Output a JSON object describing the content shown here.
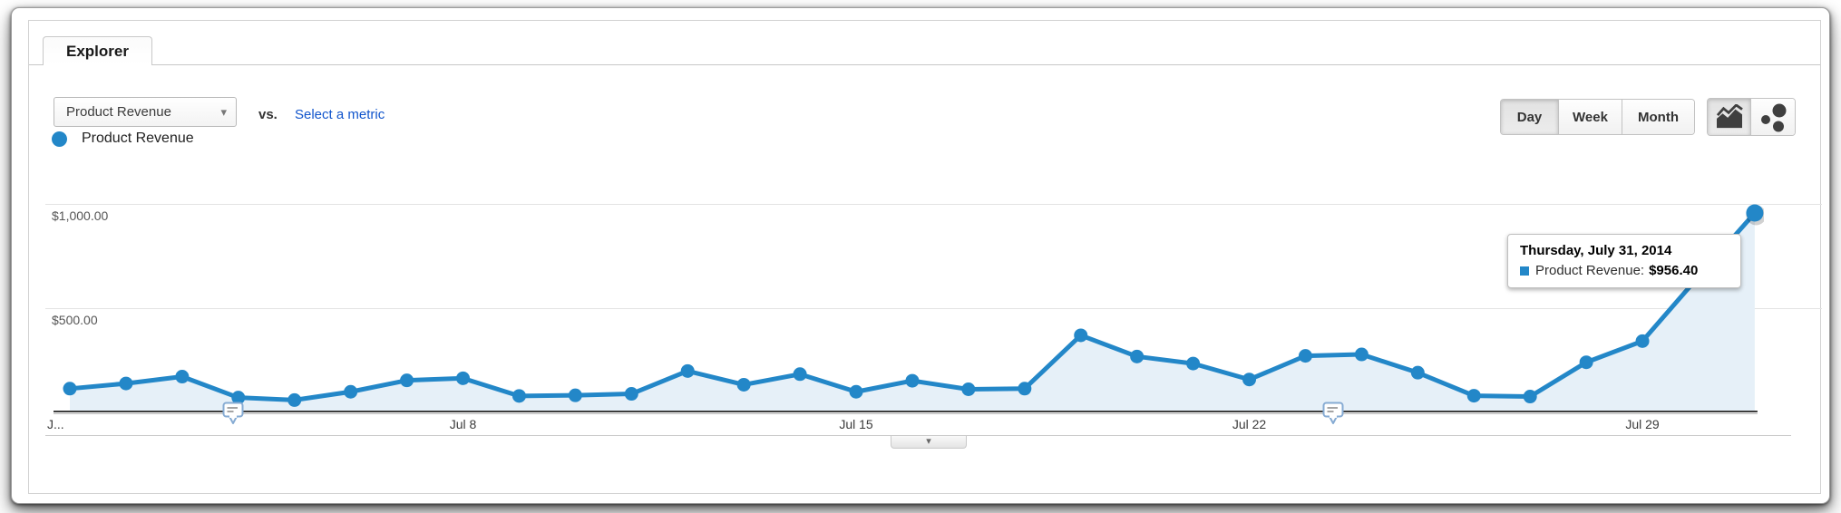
{
  "tab_label": "Explorer",
  "controls": {
    "metric_dropdown": {
      "value": "Product Revenue",
      "caret_icon": "▾"
    },
    "vs_label": "vs.",
    "select_metric_link": "Select a metric",
    "granularity_buttons": [
      {
        "label": "Day",
        "selected": true
      },
      {
        "label": "Week",
        "selected": false
      },
      {
        "label": "Month",
        "selected": false
      }
    ],
    "chart_type_buttons": [
      {
        "name": "line-chart",
        "selected": true
      },
      {
        "name": "motion-chart",
        "selected": false
      }
    ]
  },
  "legend": {
    "label": "Product Revenue",
    "color": "#2387c8"
  },
  "tooltip": {
    "title": "Thursday, July 31, 2014",
    "metric_label": "Product Revenue:",
    "value": "$956.40",
    "swatch_color": "#2387c8"
  },
  "collapse_control": {
    "icon": "▾"
  },
  "chart_data": {
    "type": "line",
    "title": "",
    "x": [
      "Jul 1",
      "Jul 2",
      "Jul 3",
      "Jul 4",
      "Jul 5",
      "Jul 6",
      "Jul 7",
      "Jul 8",
      "Jul 9",
      "Jul 10",
      "Jul 11",
      "Jul 12",
      "Jul 13",
      "Jul 14",
      "Jul 15",
      "Jul 16",
      "Jul 17",
      "Jul 18",
      "Jul 19",
      "Jul 20",
      "Jul 21",
      "Jul 22",
      "Jul 23",
      "Jul 24",
      "Jul 25",
      "Jul 26",
      "Jul 27",
      "Jul 28",
      "Jul 29",
      "Jul 30",
      "Jul 31"
    ],
    "series": [
      {
        "name": "Product Revenue",
        "color": "#2387c8",
        "area_color": "#e6f0f8",
        "values": [
          110,
          135,
          168,
          67,
          55,
          95,
          150,
          160,
          75,
          78,
          85,
          195,
          129,
          180,
          95,
          148,
          107,
          110,
          367,
          265,
          231,
          154,
          268,
          275,
          187,
          76,
          72,
          237,
          339,
          650,
          956.4
        ]
      }
    ],
    "x_tick_labels": [
      {
        "label": "J...",
        "index": 0
      },
      {
        "label": "Jul 8",
        "index": 7
      },
      {
        "label": "Jul 15",
        "index": 14
      },
      {
        "label": "Jul 22",
        "index": 21
      },
      {
        "label": "Jul 29",
        "index": 28
      }
    ],
    "y_ticks": [
      {
        "label": "$1,000.00",
        "value": 1000
      },
      {
        "label": "$500.00",
        "value": 500
      }
    ],
    "ylim": [
      0,
      1270
    ],
    "grid": "horizontal",
    "legend_position": "top-left",
    "annotations": [
      {
        "x_index": 2.9,
        "icon": "annotation-bubble"
      },
      {
        "x_index": 22.5,
        "icon": "annotation-bubble"
      }
    ],
    "highlight_index": 30,
    "highlight_date_label": "Thursday, July 31, 2014",
    "highlight_value_label": "$956.40"
  }
}
